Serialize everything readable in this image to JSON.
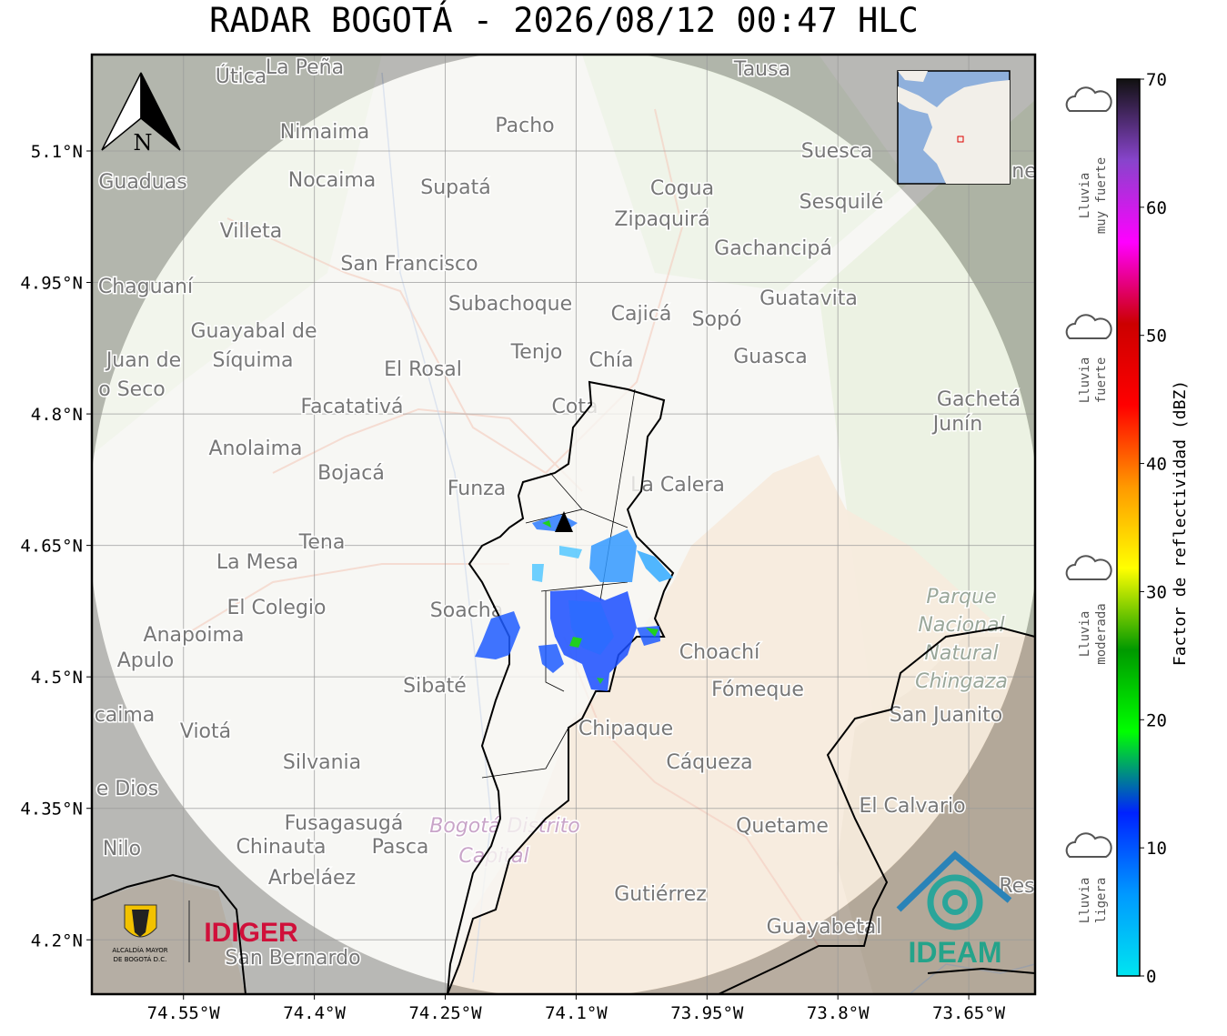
{
  "title": "RADAR BOGOTÁ - 2026/08/12 00:47 HLC",
  "north_label": "N",
  "map": {
    "xlim": [
      -74.655,
      -73.574
    ],
    "ylim": [
      4.138,
      5.21
    ],
    "xticks": [
      {
        "value": -74.55,
        "label": "74.55°W"
      },
      {
        "value": -74.4,
        "label": "74.4°W"
      },
      {
        "value": -74.25,
        "label": "74.25°W"
      },
      {
        "value": -74.1,
        "label": "74.1°W"
      },
      {
        "value": -73.95,
        "label": "73.95°W"
      },
      {
        "value": -73.8,
        "label": "73.8°W"
      },
      {
        "value": -73.65,
        "label": "73.65°W"
      }
    ],
    "yticks": [
      {
        "value": 5.1,
        "label": "5.1°N"
      },
      {
        "value": 4.95,
        "label": "4.95°N"
      },
      {
        "value": 4.8,
        "label": "4.8°N"
      },
      {
        "value": 4.65,
        "label": "4.65°N"
      },
      {
        "value": 4.5,
        "label": "4.5°N"
      },
      {
        "value": 4.35,
        "label": "4.35°N"
      },
      {
        "value": 4.2,
        "label": "4.2°N"
      }
    ],
    "grid": true,
    "places": [
      "Útica",
      "La Peña",
      "Tausa",
      "Pacho",
      "Nimaima",
      "Suesca",
      "Guaduas",
      "Nocaima",
      "Supatá",
      "Cogua",
      "Sesquilé",
      "Zipaquirá",
      "Villeta",
      "Gachancipá",
      "San Francisco",
      "Chaguaní",
      "Guatavita",
      "Subachoque",
      "Cajicá",
      "Sopó",
      "Guayabal de",
      "Síquima",
      "Tenjo",
      "Juan de",
      "Chía",
      "Guasca",
      "El Rosal",
      "o Seco",
      "Gachetá",
      "Junín",
      "Facatativá",
      "Cota",
      "Anolaima",
      "Bojacá",
      "Funza",
      "La Calera",
      "Tena",
      "La Mesa",
      "El Colegio",
      "Soacha",
      "Anapoima",
      "Apulo",
      "Choachí",
      "Sibaté",
      "Fómeque",
      "San Juanito",
      "caima",
      "Chipaque",
      "Viotá",
      "Silvania",
      "Cáqueza",
      "e Dios",
      "El Calvario",
      "Fusagasugá",
      "Quetame",
      "Nilo",
      "Chinauta",
      "Pasca",
      "Arbeláez",
      "Gutiérrez",
      "Res",
      "Guayabetal",
      "San Bernardo",
      "ne"
    ],
    "park": [
      "Parque",
      "Nacional",
      "Natural",
      "Chingaza"
    ],
    "district": [
      "Bogotá Distrito",
      "Capital"
    ]
  },
  "colorbar": {
    "label": "Factor de reflectividad (dBZ)",
    "lim": [
      0,
      70
    ],
    "ticks": [
      0,
      10,
      20,
      30,
      40,
      50,
      60,
      70
    ],
    "colors": [
      "#00e5f0",
      "#0099ff",
      "#0022ff",
      "#00ff00",
      "#009900",
      "#ffff00",
      "#ff9900",
      "#ff0000",
      "#cc0000",
      "#ff00ff",
      "#8844cc",
      "#111111"
    ]
  },
  "rain_categories": [
    [
      "Lluvia",
      "muy fuerte"
    ],
    [
      "Lluvia",
      "fuerte"
    ],
    [
      "Lluvia",
      "moderada"
    ],
    [
      "Lluvia",
      "ligera"
    ]
  ],
  "logos": {
    "alcaldia": [
      "ALCALDÍA MAYOR",
      "DE BOGOTÁ D.C."
    ],
    "idiger": "IDIGER",
    "ideam": "IDEAM"
  }
}
